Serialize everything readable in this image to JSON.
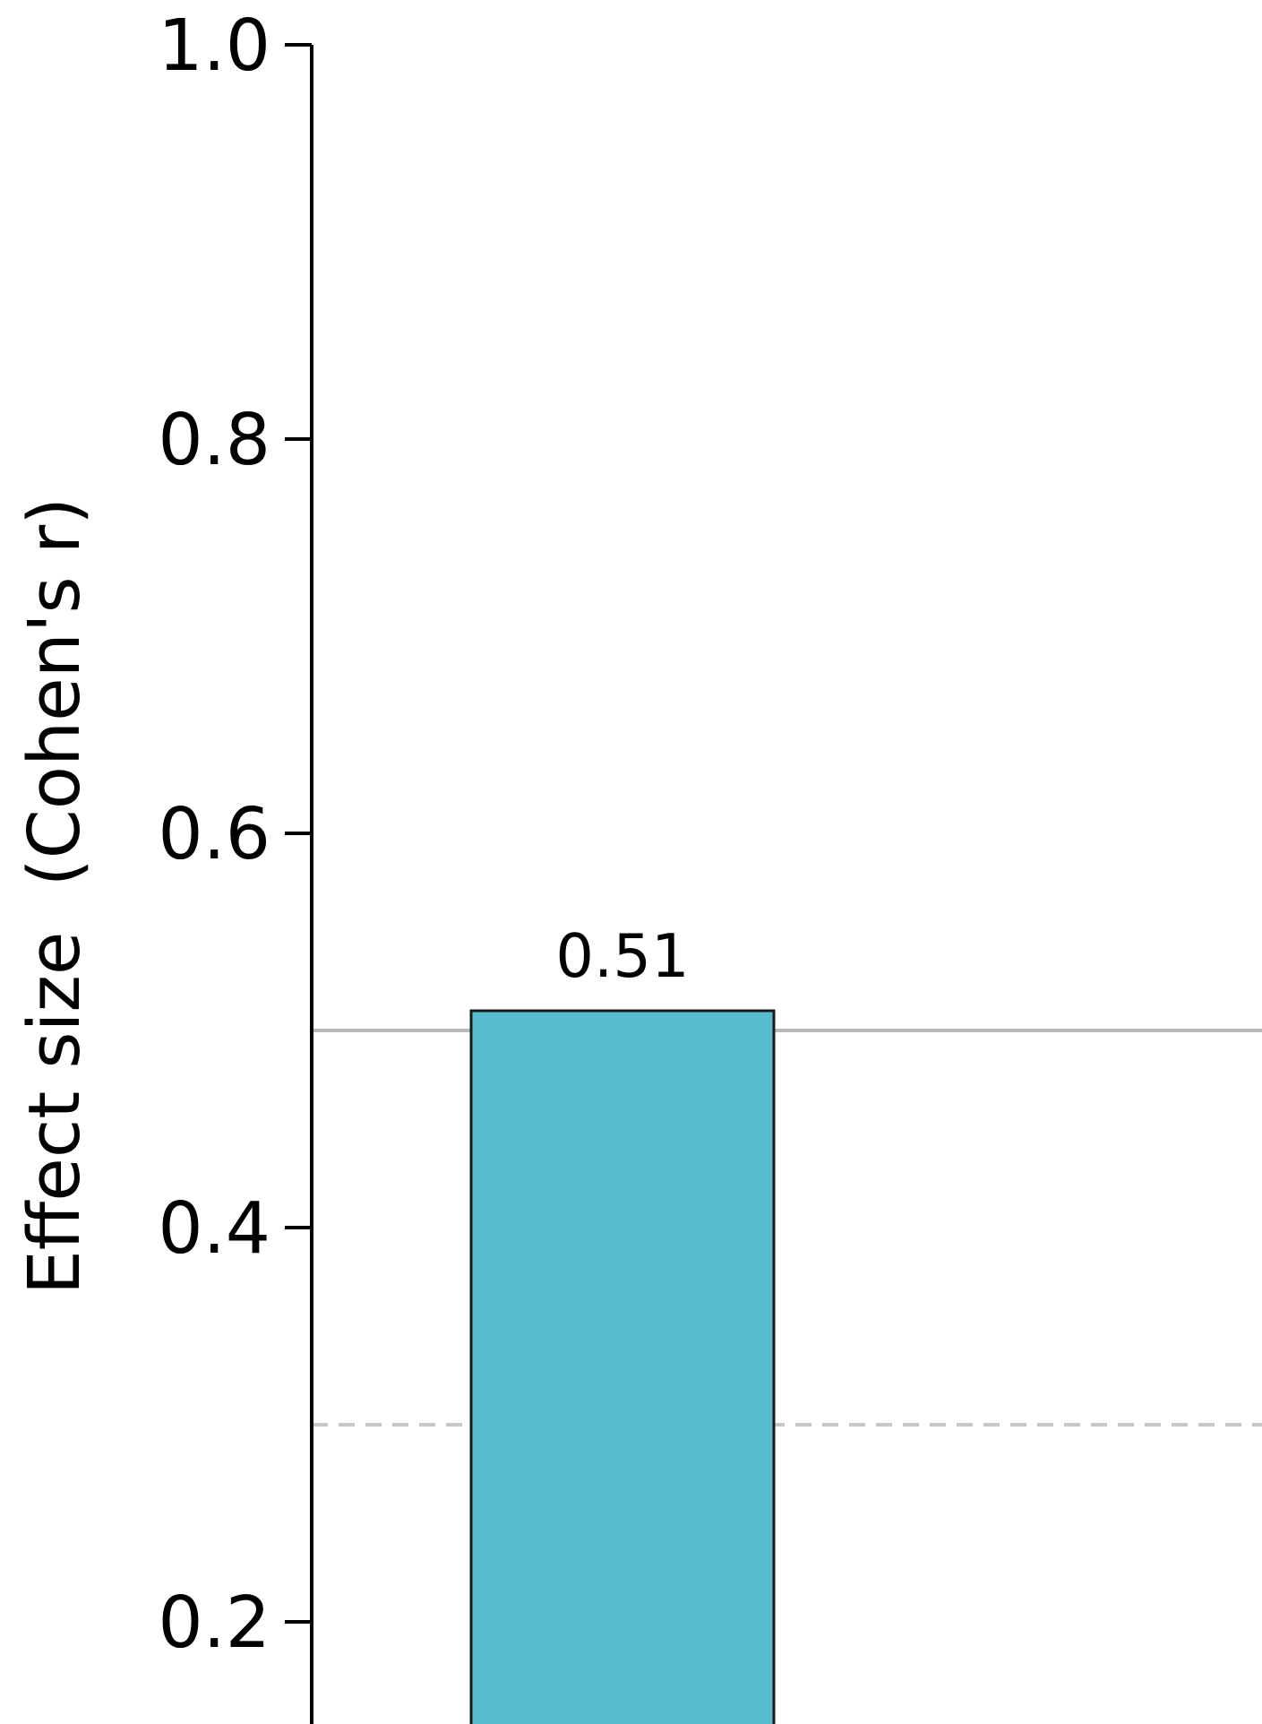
{
  "chart_data": {
    "type": "bar",
    "categories": [
      ""
    ],
    "values": [
      0.51
    ],
    "data_labels": [
      "0.51"
    ],
    "bar_color": "#56BBCA",
    "bar_edge_color": "#1a1a1a",
    "xlabel": "",
    "ylabel": "Effect size  (Cohen's r)",
    "ylim": [
      0.12,
      1.0
    ],
    "yticks": [
      0.2,
      0.4,
      0.6,
      0.8,
      1.0
    ],
    "ytick_labels": [
      "0.2",
      "0.4",
      "0.6",
      "0.8",
      "1.0"
    ],
    "reference_lines": [
      {
        "value": 0.5,
        "style": "solid",
        "color": "#b8b8b8"
      },
      {
        "value": 0.3,
        "style": "dashed",
        "color": "#c8c8c8"
      }
    ],
    "grid": false
  }
}
